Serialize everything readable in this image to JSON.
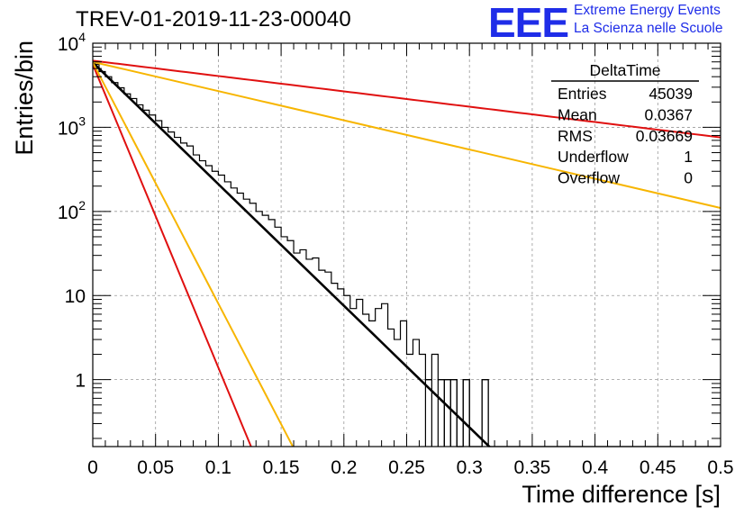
{
  "header": {
    "title": "TREV-01-2019-11-23-00040",
    "logo_text": "EEE",
    "logo_line1": "Extreme Energy Events",
    "logo_line2": "La Scienza nelle Scuole",
    "logo_color": "#1f2de8"
  },
  "chart_data": {
    "type": "histogram",
    "title": "TREV-01-2019-11-23-00040",
    "xlabel": "Time difference [s]",
    "ylabel": "Entries/bin",
    "xlim": [
      0,
      0.5
    ],
    "ylim": [
      0.16,
      10000
    ],
    "yscale": "log",
    "grid": true,
    "x_ticks": [
      "0",
      "0.05",
      "0.1",
      "0.15",
      "0.2",
      "0.25",
      "0.3",
      "0.35",
      "0.4",
      "0.45",
      "0.5"
    ],
    "y_ticks": [
      {
        "value": 1,
        "label": "1"
      },
      {
        "value": 10,
        "label": "10"
      },
      {
        "value": 100,
        "base": "10",
        "exp": "2"
      },
      {
        "value": 1000,
        "base": "10",
        "exp": "3"
      },
      {
        "value": 10000,
        "base": "10",
        "exp": "4"
      }
    ],
    "bin_width": 0.005,
    "bin_values": [
      5600,
      4600,
      4000,
      3400,
      2950,
      2500,
      2200,
      1850,
      1600,
      1400,
      1200,
      1000,
      880,
      760,
      650,
      600,
      470,
      400,
      350,
      300,
      270,
      225,
      190,
      165,
      140,
      125,
      100,
      90,
      80,
      65,
      50,
      45,
      32,
      35,
      27,
      28,
      20,
      19,
      14,
      12,
      10,
      7,
      9,
      6,
      5,
      7,
      8,
      4,
      3,
      5,
      2,
      3,
      2,
      1,
      2,
      1,
      1,
      1,
      0,
      1,
      0,
      0,
      1,
      0,
      0,
      0,
      0,
      0,
      0,
      0,
      0,
      0,
      0,
      0,
      0,
      0,
      0,
      0,
      0,
      0,
      0,
      0,
      0,
      0,
      0,
      0,
      0,
      0,
      0,
      0,
      0,
      0,
      0,
      0,
      0,
      0,
      0,
      0,
      0,
      0
    ],
    "fits": [
      {
        "color": "#000000",
        "y0": 5900,
        "slope": -33.3
      },
      {
        "color": "#e01010",
        "y0": 6200,
        "slope": -4.2
      },
      {
        "color": "#f7b500",
        "y0": 6000,
        "slope": -8.0
      },
      {
        "color": "#e01010",
        "y0": 5600,
        "slope": -83.0
      },
      {
        "color": "#f7b500",
        "y0": 5900,
        "slope": -66.0
      }
    ],
    "stats_box": {
      "title": "DeltaTime",
      "rows": [
        {
          "label": "Entries",
          "value": "45039"
        },
        {
          "label": "Mean",
          "value": "0.0367"
        },
        {
          "label": "RMS",
          "value": "0.03669"
        },
        {
          "label": "Underflow",
          "value": "1"
        },
        {
          "label": "Overflow",
          "value": "0"
        }
      ]
    }
  }
}
